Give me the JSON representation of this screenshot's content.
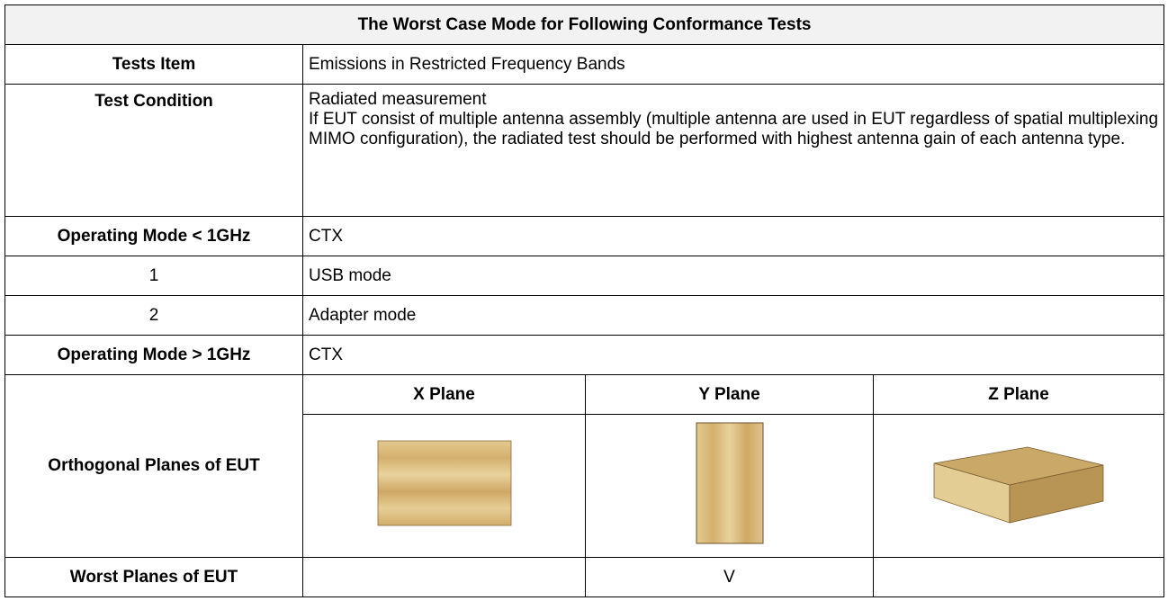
{
  "title": "The Worst Case Mode for Following Conformance Tests",
  "rows": [
    {
      "label": "Tests Item",
      "value": "Emissions in Restricted Frequency Bands"
    },
    {
      "label": "Test Condition",
      "value": [
        "Radiated measurement",
        "If EUT consist of multiple antenna assembly (multiple antenna are used in EUT regardless of spatial multiplexing MIMO configuration), the radiated test should be performed with highest antenna gain of each antenna type."
      ]
    },
    {
      "label": "Operating Mode < 1GHz",
      "value": "CTX"
    },
    {
      "label": "1",
      "value": "USB mode"
    },
    {
      "label": "2",
      "value": "Adapter mode"
    },
    {
      "label": "Operating Mode > 1GHz",
      "value": "CTX"
    }
  ],
  "planes": {
    "label": "Orthogonal Planes of EUT",
    "headers": [
      "X Plane",
      "Y Plane",
      "Z Plane"
    ]
  },
  "worst": {
    "label": "Worst Planes of EUT",
    "marks": [
      null,
      "V",
      null
    ]
  }
}
